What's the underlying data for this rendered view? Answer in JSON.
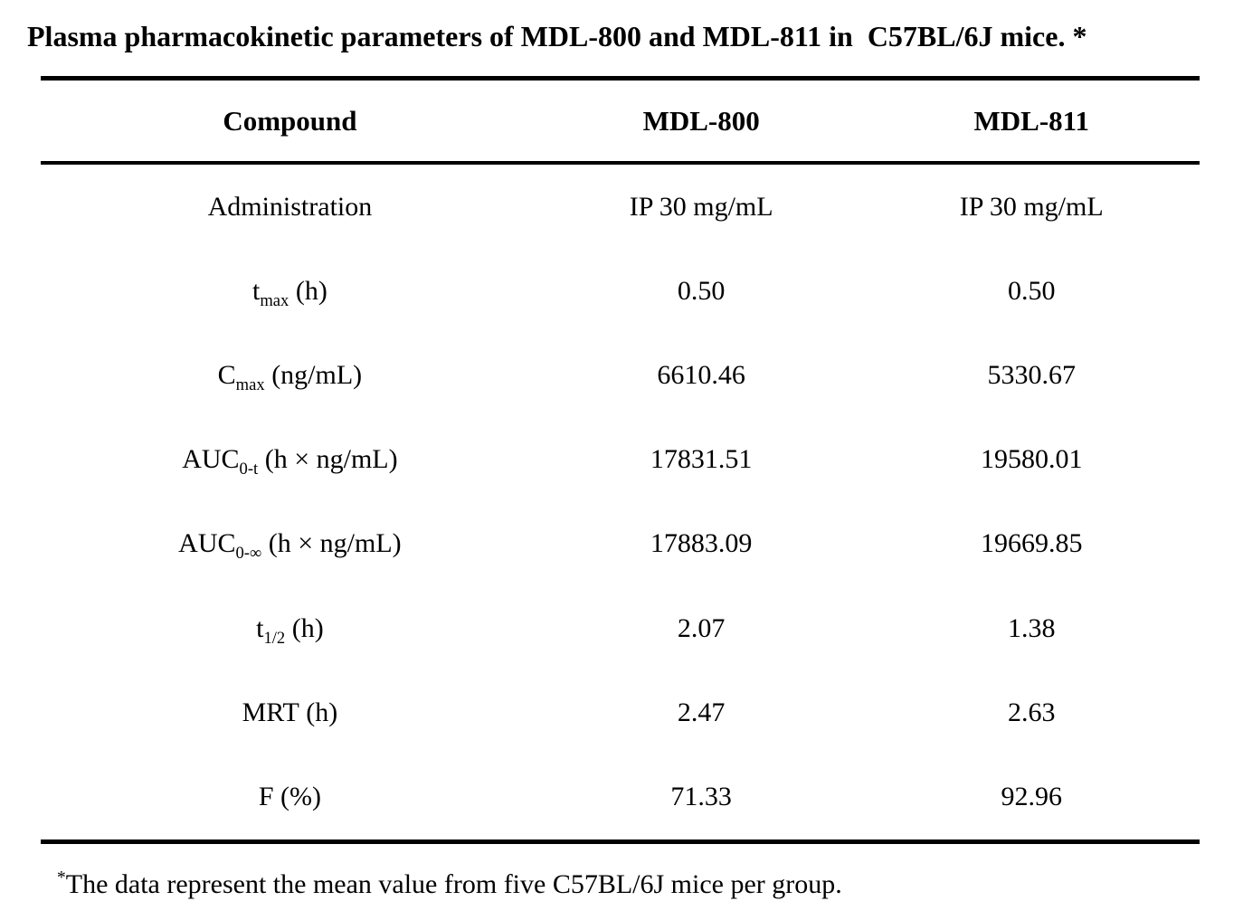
{
  "title": "Plasma pharmacokinetic parameters of MDL-800 and MDL-811 in  C57BL/6J mice. *",
  "table": {
    "header": {
      "compound": "Compound",
      "mdl800": "MDL-800",
      "mdl811": "MDL-811"
    },
    "rows": [
      {
        "label_main": "Administration",
        "label_sub": "",
        "label_rest": "",
        "mdl800": "IP 30 mg/mL",
        "mdl811": "IP 30 mg/mL"
      },
      {
        "label_main": "t",
        "label_sub": "max",
        "label_rest": " (h)",
        "mdl800": "0.50",
        "mdl811": "0.50"
      },
      {
        "label_main": "C",
        "label_sub": "max",
        "label_rest": " (ng/mL)",
        "mdl800": "6610.46",
        "mdl811": "5330.67"
      },
      {
        "label_main": "AUC",
        "label_sub": "0-t",
        "label_rest": " (h × ng/mL)",
        "mdl800": "17831.51",
        "mdl811": "19580.01"
      },
      {
        "label_main": "AUC",
        "label_sub": "0-∞",
        "label_rest": " (h × ng/mL)",
        "mdl800": "17883.09",
        "mdl811": "19669.85"
      },
      {
        "label_main": "t",
        "label_sub": "1/2",
        "label_rest": " (h)",
        "mdl800": "2.07",
        "mdl811": "1.38"
      },
      {
        "label_main": "MRT",
        "label_sub": "",
        "label_rest": " (h)",
        "mdl800": "2.47",
        "mdl811": "2.63"
      },
      {
        "label_main": "F",
        "label_sub": "",
        "label_rest": " (%)",
        "mdl800": "71.33",
        "mdl811": "92.96"
      }
    ]
  },
  "footnote": {
    "marker": "*",
    "text": "The data represent the mean value from five C57BL/6J mice per group."
  },
  "colors": {
    "text": "#000000",
    "background": "#ffffff",
    "rule": "#000000"
  },
  "chart_data": {
    "type": "table",
    "title": "Plasma pharmacokinetic parameters of MDL-800 and MDL-811 in C57BL/6J mice.",
    "columns": [
      "Compound",
      "MDL-800",
      "MDL-811"
    ],
    "rows": [
      [
        "Administration",
        "IP 30 mg/mL",
        "IP 30 mg/mL"
      ],
      [
        "tmax (h)",
        "0.50",
        "0.50"
      ],
      [
        "Cmax (ng/mL)",
        "6610.46",
        "5330.67"
      ],
      [
        "AUC0-t (h × ng/mL)",
        "17831.51",
        "19580.01"
      ],
      [
        "AUC0-∞ (h × ng/mL)",
        "17883.09",
        "19669.85"
      ],
      [
        "t1/2 (h)",
        "2.07",
        "1.38"
      ],
      [
        "MRT (h)",
        "2.47",
        "2.63"
      ],
      [
        "F (%)",
        "71.33",
        "92.96"
      ]
    ],
    "footnote": "*The data represent the mean value from five C57BL/6J mice per group."
  }
}
